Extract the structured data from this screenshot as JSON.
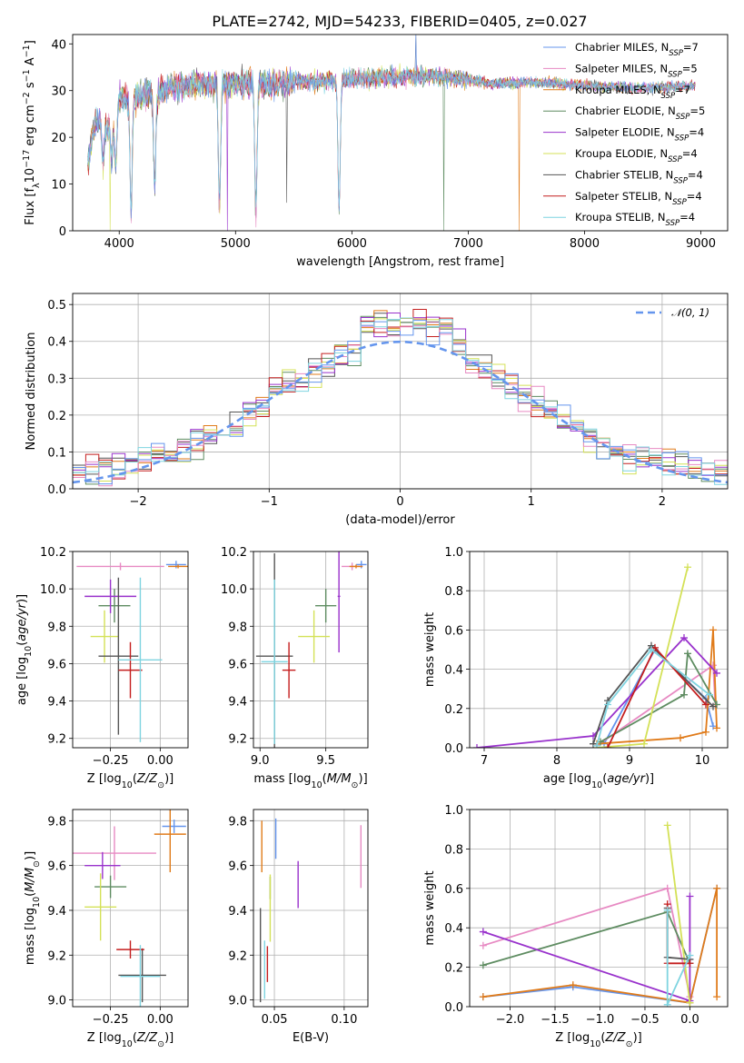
{
  "figure": {
    "title": "PLATE=2742, MJD=54233, FIBERID=0405, z=0.027"
  },
  "series": [
    {
      "name": "Chabrier MILES",
      "nssp": "7",
      "color": "#6495ed"
    },
    {
      "name": "Salpeter MILES",
      "nssp": "5",
      "color": "#e78ac3"
    },
    {
      "name": "Kroupa MILES",
      "nssp": "7",
      "color": "#e07b1a"
    },
    {
      "name": "Chabrier ELODIE",
      "nssp": "5",
      "color": "#5e8c61"
    },
    {
      "name": "Salpeter ELODIE",
      "nssp": "4",
      "color": "#9932cc"
    },
    {
      "name": "Kroupa ELODIE",
      "nssp": "4",
      "color": "#d4e157"
    },
    {
      "name": "Chabrier STELIB",
      "nssp": "4",
      "color": "#555555"
    },
    {
      "name": "Salpeter STELIB",
      "nssp": "4",
      "color": "#c41e1e"
    },
    {
      "name": "Kroupa STELIB",
      "nssp": "4",
      "color": "#7fd4e0"
    }
  ],
  "chart_data": [
    {
      "id": "spectrum",
      "type": "line",
      "xlabel": "wavelength [Angstrom, rest frame]",
      "ylabel": "Flux [f_λ 10^-17 erg cm^-2 s^-1 A^-1]",
      "xlim": [
        3600,
        9230
      ],
      "ylim": [
        0,
        42
      ],
      "xticks": [
        4000,
        5000,
        6000,
        7000,
        8000,
        9000
      ],
      "yticks": [
        0,
        10,
        20,
        30,
        40
      ],
      "legend": "top-right",
      "continuum": [
        [
          3730,
          15
        ],
        [
          3800,
          24
        ],
        [
          3900,
          22
        ],
        [
          4000,
          28
        ],
        [
          4200,
          29
        ],
        [
          4500,
          31
        ],
        [
          4800,
          31.5
        ],
        [
          5200,
          31.5
        ],
        [
          5600,
          32
        ],
        [
          6000,
          32.5
        ],
        [
          6400,
          33
        ],
        [
          6800,
          33
        ],
        [
          7200,
          31.5
        ],
        [
          7600,
          31.8
        ],
        [
          8000,
          31
        ],
        [
          8500,
          30.5
        ],
        [
          8950,
          31
        ]
      ],
      "absorption": [
        [
          3860,
          8
        ],
        [
          3935,
          9
        ],
        [
          3970,
          12
        ],
        [
          4102,
          24
        ],
        [
          4305,
          20
        ],
        [
          4862,
          26
        ],
        [
          5175,
          27
        ],
        [
          5890,
          28
        ]
      ],
      "spikes": [
        [
          3920,
          0,
          5
        ],
        [
          4930,
          0,
          4
        ],
        [
          5440,
          6,
          6
        ],
        [
          6790,
          0,
          3
        ],
        [
          7440,
          0,
          2
        ],
        [
          6550,
          42,
          0
        ]
      ]
    },
    {
      "id": "residuals",
      "type": "histogram",
      "xlabel": "(data-model)/error",
      "ylabel": "Normed distribution",
      "xlim": [
        -2.5,
        2.5
      ],
      "ylim": [
        0,
        0.53
      ],
      "xticks": [
        -2,
        -1,
        0,
        1,
        2
      ],
      "yticks": [
        0.0,
        0.1,
        0.2,
        0.3,
        0.4,
        0.5
      ],
      "bin_width": 0.1,
      "reference": {
        "name": "𝒩(0, 1)",
        "mean": 0,
        "sigma": 1,
        "color": "#6495ed"
      },
      "legend": "top-right"
    },
    {
      "id": "age_vs_Z",
      "type": "errorbar",
      "xlabel": "Z [log10(Z/Z⊙)]",
      "ylabel": "age  [log10(age/yr)]",
      "xlim": [
        -0.44,
        0.14
      ],
      "ylim": [
        9.15,
        10.2
      ],
      "xticks": [
        -0.25,
        0.0
      ],
      "yticks": [
        9.2,
        9.4,
        9.6,
        9.8,
        10.0,
        10.2
      ],
      "points": [
        {
          "s": 0,
          "x": 0.08,
          "y": 10.13,
          "dx": 0.05,
          "dy": 0.02
        },
        {
          "s": 1,
          "x": -0.2,
          "y": 10.12,
          "dx": 0.22,
          "dy": 0.02
        },
        {
          "s": 2,
          "x": 0.09,
          "y": 10.12,
          "dx": 0.05,
          "dy": 0.01
        },
        {
          "s": 3,
          "x": -0.23,
          "y": 9.91,
          "dx": 0.08,
          "dy": 0.09
        },
        {
          "s": 4,
          "x": -0.25,
          "y": 9.96,
          "dx": 0.13,
          "dy": 0.09
        },
        {
          "s": 5,
          "x": -0.28,
          "y": 9.745,
          "dx": 0.07,
          "dy": 0.14
        },
        {
          "s": 6,
          "x": -0.21,
          "y": 9.64,
          "dx": 0.1,
          "dy": 0.42
        },
        {
          "s": 7,
          "x": -0.15,
          "y": 9.565,
          "dx": 0.06,
          "dy": 0.15
        },
        {
          "s": 8,
          "x": -0.1,
          "y": 9.62,
          "dx": 0.11,
          "dy": 0.44
        }
      ]
    },
    {
      "id": "age_vs_mass",
      "type": "errorbar",
      "xlabel": "mass [log10(M/M⊙)]",
      "ylabel": "",
      "xlim": [
        8.95,
        9.82
      ],
      "ylim": [
        9.15,
        10.2
      ],
      "xticks": [
        9.0,
        9.5
      ],
      "yticks": [
        9.2,
        9.4,
        9.6,
        9.8,
        10.0,
        10.2
      ],
      "points": [
        {
          "s": 0,
          "x": 9.77,
          "y": 10.13,
          "dx": 0.04,
          "dy": 0.02
        },
        {
          "s": 1,
          "x": 9.7,
          "y": 10.12,
          "dx": 0.08,
          "dy": 0.02
        },
        {
          "s": 2,
          "x": 9.73,
          "y": 10.12,
          "dx": 0.05,
          "dy": 0.01
        },
        {
          "s": 3,
          "x": 9.5,
          "y": 9.91,
          "dx": 0.08,
          "dy": 0.09
        },
        {
          "s": 4,
          "x": 9.6,
          "y": 9.96,
          "dx": 0.01,
          "dy": 0.3
        },
        {
          "s": 5,
          "x": 9.41,
          "y": 9.745,
          "dx": 0.12,
          "dy": 0.14
        },
        {
          "s": 6,
          "x": 9.11,
          "y": 9.64,
          "dx": 0.14,
          "dy": 0.55
        },
        {
          "s": 7,
          "x": 9.22,
          "y": 9.565,
          "dx": 0.05,
          "dy": 0.15
        },
        {
          "s": 8,
          "x": 9.11,
          "y": 9.61,
          "dx": 0.1,
          "dy": 0.44
        }
      ]
    },
    {
      "id": "weight_vs_age",
      "type": "line",
      "xlabel": "age  [log10(age/yr)]",
      "ylabel": "mass weight",
      "xlim": [
        6.8,
        10.35
      ],
      "ylim": [
        0,
        1.0
      ],
      "xticks": [
        7,
        8,
        9,
        10
      ],
      "yticks": [
        0.0,
        0.2,
        0.4,
        0.6,
        0.8,
        1.0
      ],
      "lines": [
        {
          "s": 0,
          "pts": [
            [
              8.65,
              0.02
            ],
            [
              9.35,
              0.5
            ],
            [
              10.05,
              0.25
            ],
            [
              10.15,
              0.11
            ]
          ]
        },
        {
          "s": 1,
          "pts": [
            [
              8.55,
              0.01
            ],
            [
              10.15,
              0.42
            ],
            [
              10.18,
              0.22
            ]
          ]
        },
        {
          "s": 2,
          "pts": [
            [
              8.55,
              0.02
            ],
            [
              9.7,
              0.05
            ],
            [
              10.05,
              0.08
            ],
            [
              10.15,
              0.6
            ],
            [
              10.2,
              0.1
            ]
          ]
        },
        {
          "s": 3,
          "pts": [
            [
              8.6,
              0.03
            ],
            [
              9.75,
              0.27
            ],
            [
              9.8,
              0.48
            ],
            [
              10.2,
              0.22
            ]
          ]
        },
        {
          "s": 4,
          "pts": [
            [
              6.9,
              0.0
            ],
            [
              8.5,
              0.06
            ],
            [
              9.75,
              0.56
            ],
            [
              10.2,
              0.38
            ]
          ]
        },
        {
          "s": 5,
          "pts": [
            [
              8.55,
              0.0
            ],
            [
              9.2,
              0.02
            ],
            [
              9.8,
              0.92
            ]
          ]
        },
        {
          "s": 6,
          "pts": [
            [
              8.5,
              0.02
            ],
            [
              8.7,
              0.24
            ],
            [
              9.3,
              0.52
            ],
            [
              10.15,
              0.21
            ]
          ]
        },
        {
          "s": 7,
          "pts": [
            [
              8.7,
              0.0
            ],
            [
              9.35,
              0.51
            ],
            [
              10.05,
              0.22
            ]
          ]
        },
        {
          "s": 8,
          "pts": [
            [
              8.55,
              0.01
            ],
            [
              8.7,
              0.22
            ],
            [
              9.3,
              0.5
            ],
            [
              10.1,
              0.27
            ]
          ]
        }
      ]
    },
    {
      "id": "mass_vs_Z",
      "type": "errorbar",
      "xlabel": "Z [log10(Z/Z⊙)]",
      "ylabel": "mass [log10(M/M⊙)]",
      "xlim": [
        -0.44,
        0.14
      ],
      "ylim": [
        8.97,
        9.85
      ],
      "xticks": [
        -0.25,
        0.0
      ],
      "yticks": [
        9.0,
        9.2,
        9.4,
        9.6,
        9.8
      ],
      "points": [
        {
          "s": 0,
          "x": 0.07,
          "y": 9.775,
          "dx": 0.06,
          "dy": 0.03
        },
        {
          "s": 1,
          "x": -0.23,
          "y": 9.655,
          "dx": 0.21,
          "dy": 0.12
        },
        {
          "s": 2,
          "x": 0.05,
          "y": 9.74,
          "dx": 0.08,
          "dy": 0.17
        },
        {
          "s": 3,
          "x": -0.25,
          "y": 9.505,
          "dx": 0.08,
          "dy": 0.05
        },
        {
          "s": 4,
          "x": -0.29,
          "y": 9.6,
          "dx": 0.09,
          "dy": 0.06
        },
        {
          "s": 5,
          "x": -0.3,
          "y": 9.415,
          "dx": 0.08,
          "dy": 0.15
        },
        {
          "s": 6,
          "x": -0.09,
          "y": 9.11,
          "dx": 0.12,
          "dy": 0.12
        },
        {
          "s": 7,
          "x": -0.15,
          "y": 9.225,
          "dx": 0.07,
          "dy": 0.04
        },
        {
          "s": 8,
          "x": -0.1,
          "y": 9.105,
          "dx": 0.1,
          "dy": 0.14
        }
      ]
    },
    {
      "id": "mass_vs_ebv",
      "type": "errorbar",
      "xlabel": "E(B-V)",
      "ylabel": "",
      "xlim": [
        0.035,
        0.117
      ],
      "ylim": [
        8.97,
        9.85
      ],
      "xticks": [
        0.05,
        0.1
      ],
      "yticks": [
        9.0,
        9.2,
        9.4,
        9.6,
        9.8
      ],
      "points": [
        {
          "s": 0,
          "x": 0.051,
          "y": 9.72,
          "dx": 0,
          "dy": 0.09
        },
        {
          "s": 1,
          "x": 0.112,
          "y": 9.64,
          "dx": 0,
          "dy": 0.14
        },
        {
          "s": 2,
          "x": 0.041,
          "y": 9.685,
          "dx": 0,
          "dy": 0.115
        },
        {
          "s": 3,
          "x": 0.047,
          "y": 9.5,
          "dx": 0,
          "dy": 0.05
        },
        {
          "s": 4,
          "x": 0.067,
          "y": 9.515,
          "dx": 0,
          "dy": 0.105
        },
        {
          "s": 5,
          "x": 0.047,
          "y": 9.41,
          "dx": 0,
          "dy": 0.15
        },
        {
          "s": 6,
          "x": 0.04,
          "y": 9.2,
          "dx": 0,
          "dy": 0.21
        },
        {
          "s": 7,
          "x": 0.045,
          "y": 9.16,
          "dx": 0,
          "dy": 0.08
        },
        {
          "s": 8,
          "x": 0.043,
          "y": 9.135,
          "dx": 0,
          "dy": 0.13
        }
      ]
    },
    {
      "id": "weight_vs_Z",
      "type": "line",
      "xlabel": "Z [log10(Z/Z⊙)]",
      "ylabel": "mass weight",
      "xlim": [
        -2.45,
        0.42
      ],
      "ylim": [
        0,
        1.0
      ],
      "xticks": [
        -2.0,
        -1.5,
        -1.0,
        -0.5,
        0.0
      ],
      "yticks": [
        0.0,
        0.2,
        0.4,
        0.6,
        0.8,
        1.0
      ],
      "lines": [
        {
          "s": 0,
          "pts": [
            [
              -2.3,
              0.05
            ],
            [
              -1.3,
              0.1
            ],
            [
              0.0,
              0.02
            ],
            [
              0.3,
              0.6
            ]
          ]
        },
        {
          "s": 1,
          "pts": [
            [
              -2.3,
              0.31
            ],
            [
              -0.25,
              0.6
            ],
            [
              0.0,
              0.05
            ]
          ]
        },
        {
          "s": 2,
          "pts": [
            [
              -2.3,
              0.05
            ],
            [
              -1.3,
              0.11
            ],
            [
              0.0,
              0.02
            ],
            [
              0.3,
              0.6
            ],
            [
              0.3,
              0.05
            ]
          ]
        },
        {
          "s": 3,
          "pts": [
            [
              -2.3,
              0.21
            ],
            [
              -0.25,
              0.48
            ],
            [
              0.0,
              0.22
            ]
          ]
        },
        {
          "s": 4,
          "pts": [
            [
              -2.3,
              0.38
            ],
            [
              0.0,
              0.03
            ],
            [
              0.0,
              0.56
            ]
          ]
        },
        {
          "s": 5,
          "pts": [
            [
              -0.25,
              0.92
            ],
            [
              0.0,
              0.02
            ]
          ]
        },
        {
          "s": 6,
          "pts": [
            [
              -0.25,
              0.5
            ],
            [
              -0.25,
              0.25
            ],
            [
              0.0,
              0.24
            ]
          ]
        },
        {
          "s": 7,
          "pts": [
            [
              -0.25,
              0.52
            ],
            [
              -0.25,
              0.22
            ],
            [
              0.0,
              0.22
            ]
          ]
        },
        {
          "s": 8,
          "pts": [
            [
              -0.25,
              0.49
            ],
            [
              -0.25,
              0.01
            ],
            [
              0.0,
              0.26
            ]
          ]
        }
      ]
    }
  ]
}
